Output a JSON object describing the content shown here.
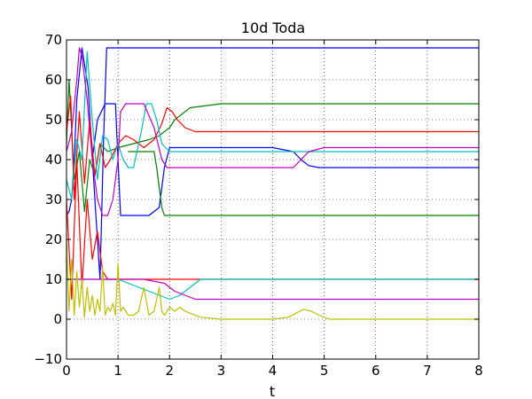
{
  "chart_data": {
    "type": "line",
    "title": "10d Toda",
    "xlabel": "t",
    "ylabel": "",
    "xlim": [
      0,
      8
    ],
    "ylim": [
      -10,
      70
    ],
    "xticks": [
      0,
      1,
      2,
      3,
      4,
      5,
      6,
      7,
      8
    ],
    "yticks": [
      -10,
      0,
      10,
      20,
      30,
      40,
      50,
      60,
      70
    ],
    "xtick_labels": [
      "0",
      "1",
      "2",
      "3",
      "4",
      "5",
      "6",
      "7",
      "8"
    ],
    "ytick_labels": [
      "−10",
      "0",
      "10",
      "20",
      "30",
      "40",
      "50",
      "60",
      "70"
    ],
    "grid": true,
    "grid_style": "dotted",
    "legend": "none",
    "colors": {
      "blue": "#0000ff",
      "green": "#008000",
      "red": "#ff0000",
      "cyan": "#00bfbf",
      "magenta": "#bf00bf",
      "yellow": "#bfbf00"
    },
    "series": [
      {
        "color": "blue",
        "x": [
          0,
          0.05,
          0.1,
          0.15,
          0.2,
          0.3,
          0.42,
          0.55,
          0.65,
          0.72,
          0.78,
          1.0,
          2.0,
          4.0,
          6.0,
          8.0
        ],
        "y": [
          26,
          27,
          30,
          40,
          55,
          68,
          58,
          30,
          10,
          45,
          68,
          68,
          68,
          68,
          68,
          68
        ]
      },
      {
        "color": "blue",
        "x": [
          0.5,
          0.6,
          0.75,
          0.95,
          1.0,
          1.05,
          1.2,
          1.6,
          1.8,
          1.9,
          2.0,
          2.2,
          3.0,
          4.0,
          4.4,
          4.55,
          4.7,
          4.9,
          5.5,
          8.0
        ],
        "y": [
          40,
          50,
          54,
          54,
          40,
          26,
          26,
          26,
          28,
          38,
          43,
          43,
          43,
          43,
          42,
          40,
          38.5,
          38,
          38,
          38
        ]
      },
      {
        "color": "green",
        "x": [
          0,
          0.05,
          0.15,
          0.25,
          0.35,
          0.45,
          0.55,
          0.65,
          0.8,
          1.0,
          1.3,
          1.6,
          1.8,
          1.9,
          2.0,
          2.1,
          2.4,
          3.0,
          5.0,
          8.0
        ],
        "y": [
          44,
          60,
          35,
          42,
          27,
          40,
          36,
          44,
          42,
          43,
          44,
          45,
          46,
          47,
          48,
          50,
          53,
          54,
          54,
          54
        ]
      },
      {
        "color": "green",
        "x": [
          1.2,
          1.4,
          1.6,
          1.7,
          1.75,
          1.8,
          1.85,
          1.9,
          2.0,
          2.5,
          5.0,
          8.0
        ],
        "y": [
          42,
          42,
          42,
          42,
          38,
          33,
          28,
          26,
          26,
          26,
          26,
          26
        ]
      },
      {
        "color": "red",
        "x": [
          0,
          0.08,
          0.15,
          0.25,
          0.35,
          0.45,
          0.55,
          0.65,
          0.75,
          0.85,
          1.0,
          1.15,
          1.3,
          1.5,
          1.7,
          1.85,
          1.95,
          2.05,
          2.15,
          2.3,
          2.5,
          2.8,
          4.0,
          8.0
        ],
        "y": [
          47,
          56,
          30,
          52,
          34,
          50,
          36,
          44,
          38,
          40,
          44,
          46,
          45,
          43,
          45,
          49,
          53,
          52,
          50,
          48,
          47,
          47,
          47,
          47
        ]
      },
      {
        "color": "red",
        "x": [
          0,
          0.1,
          0.2,
          0.3,
          0.4,
          0.5,
          0.6,
          0.7,
          0.8,
          1.0,
          2.0,
          4.0,
          8.0
        ],
        "y": [
          30,
          5,
          40,
          8,
          30,
          15,
          22,
          12,
          10,
          10,
          10,
          10,
          10
        ]
      },
      {
        "color": "cyan",
        "x": [
          0,
          0.1,
          0.2,
          0.3,
          0.4,
          0.5,
          0.6,
          0.7,
          0.8,
          0.9,
          1.0,
          1.1,
          1.2,
          1.3,
          1.45,
          1.55,
          1.65,
          1.75,
          1.85,
          2.0,
          2.2,
          2.5,
          3.0,
          8.0
        ],
        "y": [
          35,
          30,
          45,
          40,
          67,
          50,
          35,
          46,
          45,
          40,
          44,
          40,
          38,
          38,
          47,
          54,
          54,
          50,
          44,
          42,
          42,
          42,
          42,
          42
        ]
      },
      {
        "color": "cyan",
        "x": [
          0,
          0.2,
          0.4,
          0.6,
          1.0,
          1.4,
          1.8,
          2.0,
          2.2,
          2.4,
          2.6,
          3.0,
          8.0
        ],
        "y": [
          10,
          10,
          10,
          10,
          10,
          8,
          6,
          5,
          6,
          8,
          10,
          10,
          10
        ]
      },
      {
        "color": "magenta",
        "x": [
          0,
          0.1,
          0.2,
          0.25,
          0.3,
          0.4,
          0.5,
          0.6,
          0.7,
          0.8,
          0.9,
          1.0,
          1.05,
          1.15,
          1.3,
          1.5,
          1.7,
          1.85,
          1.95,
          2.1,
          2.5,
          3.5,
          4.4,
          4.55,
          4.7,
          5.0,
          8.0
        ],
        "y": [
          42,
          47,
          60,
          68,
          66,
          55,
          40,
          30,
          26,
          26,
          30,
          40,
          52,
          54,
          54,
          54,
          48,
          40,
          38,
          38,
          38,
          38,
          38,
          40,
          42,
          43,
          43
        ]
      },
      {
        "color": "magenta",
        "x": [
          0,
          0.2,
          0.6,
          1.0,
          1.5,
          1.9,
          2.1,
          2.3,
          2.5,
          3.0,
          5.0,
          8.0
        ],
        "y": [
          10,
          10,
          10,
          10,
          10,
          9,
          7,
          6,
          5,
          5,
          5,
          5
        ]
      },
      {
        "color": "yellow",
        "x": [
          0,
          0.05,
          0.1,
          0.15,
          0.2,
          0.25,
          0.3,
          0.35,
          0.4,
          0.45,
          0.5,
          0.55,
          0.6,
          0.65,
          0.7,
          0.75,
          0.8,
          0.85,
          0.9,
          0.95,
          1.0,
          1.05,
          1.1,
          1.2,
          1.3,
          1.4,
          1.5,
          1.6,
          1.7,
          1.75,
          1.8,
          1.85,
          1.9,
          2.0,
          2.1,
          2.2,
          2.3,
          2.4,
          2.6,
          3.0,
          4.0,
          4.3,
          4.45,
          4.6,
          4.75,
          4.9,
          5.1,
          5.5,
          8.0
        ],
        "y": [
          20,
          2,
          15,
          1,
          12,
          3,
          10,
          0.5,
          8,
          2,
          6,
          1,
          5,
          2,
          13,
          1,
          3,
          2,
          4,
          1,
          14,
          2,
          3,
          1,
          1,
          2,
          8,
          1,
          2,
          5,
          8,
          2,
          1,
          3,
          2,
          3,
          2,
          1.5,
          0.5,
          0,
          0,
          0.5,
          1.5,
          2.5,
          2,
          1,
          0,
          0,
          0
        ]
      }
    ]
  }
}
